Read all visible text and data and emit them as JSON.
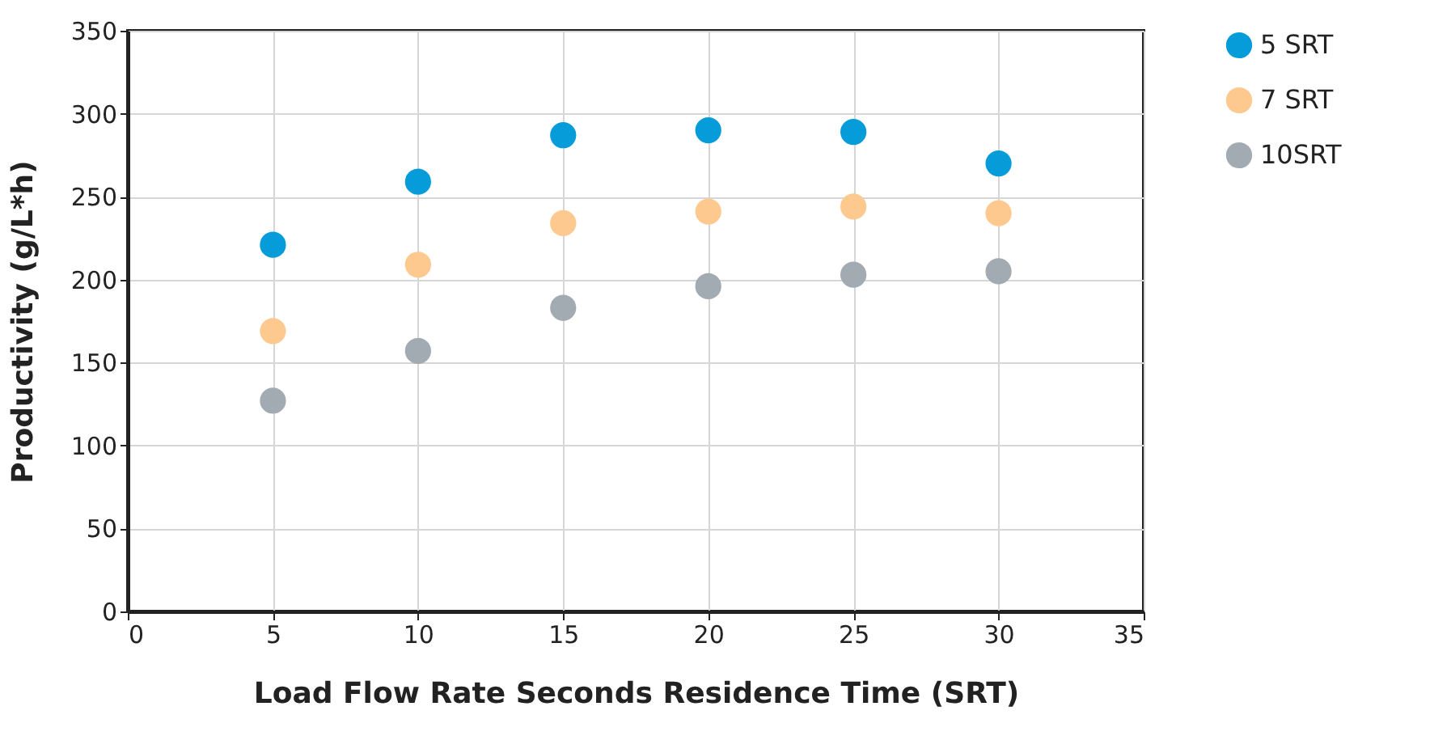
{
  "chart_data": {
    "type": "scatter",
    "xlabel": "Load Flow Rate Seconds Residence Time (SRT)",
    "ylabel": "Productivity (g/L*h)",
    "x": [
      5,
      10,
      15,
      20,
      25,
      30
    ],
    "series": [
      {
        "name": "5 SRT",
        "color": "#069cd9",
        "values": [
          221,
          259,
          287,
          290,
          289,
          270
        ]
      },
      {
        "name": "7 SRT",
        "color": "#fec98e",
        "values": [
          169,
          209,
          234,
          241,
          244,
          240
        ]
      },
      {
        "name": "10SRT",
        "color": "#a2aab2",
        "values": [
          127,
          157,
          183,
          196,
          203,
          205
        ]
      }
    ],
    "xlim": [
      0,
      35
    ],
    "xticks": [
      0,
      5,
      10,
      15,
      20,
      25,
      30,
      35
    ],
    "ylim": [
      0,
      350
    ],
    "yticks": [
      0,
      50,
      100,
      150,
      200,
      250,
      300,
      350
    ],
    "grid": true,
    "legend": "right",
    "marker": "circle"
  }
}
